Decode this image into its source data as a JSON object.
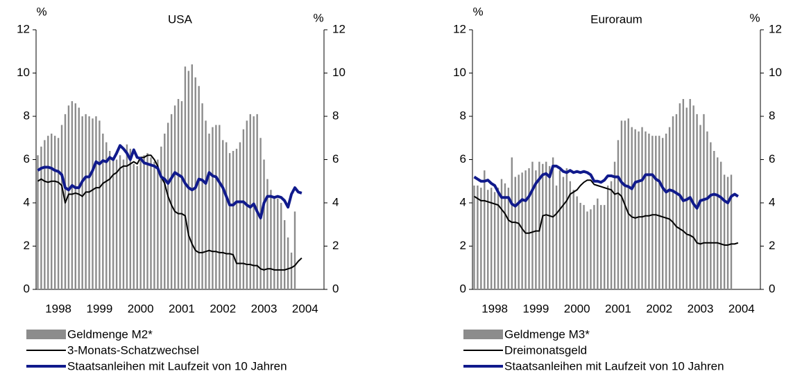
{
  "chart_data": [
    {
      "type": "bar_line",
      "title": "USA",
      "y_label": "%",
      "y2_label": "%",
      "categories": [
        null,
        null,
        null,
        null,
        null,
        null,
        "1998",
        null,
        null,
        null,
        null,
        null,
        null,
        null,
        null,
        null,
        null,
        null,
        "1999",
        null,
        null,
        null,
        null,
        null,
        null,
        null,
        null,
        null,
        null,
        null,
        "2000",
        null,
        null,
        null,
        null,
        null,
        null,
        null,
        null,
        null,
        null,
        null,
        "2001",
        null,
        null,
        null,
        null,
        null,
        null,
        null,
        null,
        null,
        null,
        null,
        "2002",
        null,
        null,
        null,
        null,
        null,
        null,
        null,
        null,
        null,
        null,
        null,
        "2003",
        null,
        null,
        null,
        null,
        null,
        null,
        null,
        null,
        null,
        null,
        null,
        "2004",
        null,
        null,
        null,
        null,
        null
      ],
      "ylim": [
        0,
        12
      ],
      "yticks": [
        0,
        2,
        4,
        6,
        8,
        10,
        12
      ],
      "y2lim": [
        0,
        12
      ],
      "y2ticks": [
        0,
        2,
        4,
        6,
        8,
        10,
        12
      ],
      "series": [
        {
          "name": "Geldmenge M2*",
          "kind": "bar",
          "color": "#8c8c8c",
          "values": [
            6.2,
            6.6,
            6.9,
            7.1,
            7.2,
            7.1,
            7.0,
            7.6,
            8.1,
            8.5,
            8.7,
            8.6,
            8.4,
            8.0,
            8.1,
            8.0,
            7.9,
            8.0,
            7.8,
            7.2,
            6.8,
            6.4,
            6.1,
            6.0,
            6.2,
            6.0,
            6.7,
            6.5,
            5.8,
            5.7,
            6.0,
            6.2,
            6.3,
            6.1,
            5.9,
            6.0,
            6.6,
            7.2,
            7.7,
            8.1,
            8.5,
            8.8,
            8.7,
            10.3,
            10.1,
            10.4,
            9.8,
            9.4,
            8.6,
            7.8,
            7.2,
            7.5,
            7.6,
            7.6,
            6.9,
            6.8,
            6.3,
            6.4,
            6.5,
            6.8,
            7.4,
            7.8,
            8.1,
            8.0,
            8.1,
            7.0,
            6.0,
            5.1,
            4.6,
            4.3,
            4.2,
            4.0,
            3.2,
            2.4,
            1.7,
            3.6,
            null,
            null,
            null,
            null,
            null,
            null,
            null,
            null
          ]
        },
        {
          "name": "3-Monats-Schatzwechsel",
          "kind": "line",
          "color": "#000000",
          "width": 2,
          "values": [
            5.0,
            5.1,
            5.0,
            4.95,
            5.0,
            5.0,
            4.95,
            4.8,
            4.0,
            4.4,
            4.4,
            4.45,
            4.4,
            4.3,
            4.5,
            4.5,
            4.6,
            4.7,
            4.7,
            4.9,
            5.0,
            5.1,
            5.3,
            5.4,
            5.6,
            5.7,
            5.7,
            5.8,
            5.9,
            5.8,
            6.1,
            6.1,
            6.2,
            6.2,
            6.0,
            5.7,
            5.2,
            4.9,
            4.3,
            3.9,
            3.6,
            3.5,
            3.5,
            3.4,
            2.5,
            2.1,
            1.8,
            1.7,
            1.7,
            1.75,
            1.8,
            1.75,
            1.75,
            1.7,
            1.7,
            1.65,
            1.65,
            1.6,
            1.2,
            1.2,
            1.2,
            1.15,
            1.15,
            1.1,
            1.1,
            0.95,
            0.9,
            0.95,
            0.95,
            0.9,
            0.9,
            0.9,
            0.9,
            0.95,
            1.0,
            1.1,
            1.3,
            1.45,
            null,
            null,
            null,
            null,
            null,
            null
          ]
        },
        {
          "name": "Staatsanleihen mit Laufzeit von 10 Jahren",
          "kind": "line",
          "color": "#101a8c",
          "width": 4,
          "values": [
            5.5,
            5.6,
            5.65,
            5.65,
            5.6,
            5.5,
            5.45,
            5.3,
            4.7,
            4.6,
            4.8,
            4.7,
            4.7,
            5.0,
            5.2,
            5.2,
            5.5,
            5.9,
            5.8,
            5.95,
            5.9,
            6.1,
            6.0,
            6.3,
            6.65,
            6.5,
            6.3,
            6.0,
            6.45,
            6.1,
            6.05,
            5.85,
            5.8,
            5.75,
            5.7,
            5.6,
            5.2,
            5.1,
            4.9,
            5.15,
            5.4,
            5.3,
            5.2,
            4.9,
            4.7,
            4.6,
            4.7,
            5.1,
            5.05,
            4.9,
            5.4,
            5.25,
            5.2,
            4.95,
            4.7,
            4.3,
            3.9,
            3.9,
            4.05,
            4.05,
            4.05,
            3.9,
            3.8,
            3.95,
            3.6,
            3.3,
            4.0,
            4.3,
            4.3,
            4.25,
            4.3,
            4.25,
            4.1,
            3.8,
            4.4,
            4.7,
            4.5,
            4.45,
            null,
            null,
            null,
            null,
            null,
            null
          ]
        }
      ]
    },
    {
      "type": "bar_line",
      "title": "Euroraum",
      "y_label": "%",
      "y2_label": "%",
      "categories": [
        null,
        null,
        null,
        null,
        null,
        null,
        "1998",
        null,
        null,
        null,
        null,
        null,
        null,
        null,
        null,
        null,
        null,
        null,
        "1999",
        null,
        null,
        null,
        null,
        null,
        null,
        null,
        null,
        null,
        null,
        null,
        "2000",
        null,
        null,
        null,
        null,
        null,
        null,
        null,
        null,
        null,
        null,
        null,
        "2001",
        null,
        null,
        null,
        null,
        null,
        null,
        null,
        null,
        null,
        null,
        null,
        "2002",
        null,
        null,
        null,
        null,
        null,
        null,
        null,
        null,
        null,
        null,
        null,
        "2003",
        null,
        null,
        null,
        null,
        null,
        null,
        null,
        null,
        null,
        null,
        null,
        "2004",
        null,
        null,
        null,
        null,
        null
      ],
      "ylim": [
        0,
        12
      ],
      "yticks": [
        0,
        2,
        4,
        6,
        8,
        10,
        12
      ],
      "y2lim": [
        0,
        12
      ],
      "y2ticks": [
        0,
        2,
        4,
        6,
        8,
        10,
        12
      ],
      "series": [
        {
          "name": "Geldmenge M3*",
          "kind": "bar",
          "color": "#8c8c8c",
          "values": [
            4.8,
            4.8,
            4.7,
            5.5,
            4.6,
            4.7,
            4.5,
            4.7,
            5.1,
            4.9,
            4.7,
            6.1,
            5.2,
            5.3,
            5.4,
            5.5,
            5.6,
            5.9,
            5.5,
            5.9,
            5.8,
            5.9,
            5.7,
            6.1,
            4.8,
            5.5,
            5.2,
            5.6,
            5.0,
            4.6,
            4.3,
            4.0,
            3.9,
            3.6,
            3.7,
            3.9,
            4.2,
            3.9,
            3.9,
            4.8,
            5.0,
            5.9,
            6.9,
            7.8,
            7.8,
            7.9,
            7.5,
            7.4,
            7.3,
            7.5,
            7.3,
            7.2,
            7.1,
            7.1,
            7.1,
            7.0,
            7.2,
            7.5,
            8.0,
            8.1,
            8.6,
            8.8,
            8.4,
            8.8,
            8.5,
            8.1,
            7.6,
            8.1,
            7.3,
            6.8,
            6.4,
            6.1,
            5.9,
            5.3,
            5.2,
            5.3,
            null,
            null,
            null,
            null,
            null,
            null,
            null,
            null
          ]
        },
        {
          "name": "Dreimonatsgeld",
          "kind": "line",
          "color": "#000000",
          "width": 2,
          "values": [
            4.3,
            4.2,
            4.1,
            4.1,
            4.05,
            4.0,
            3.95,
            3.9,
            3.7,
            3.5,
            3.2,
            3.1,
            3.1,
            3.05,
            2.8,
            2.6,
            2.6,
            2.65,
            2.7,
            2.7,
            3.4,
            3.45,
            3.4,
            3.35,
            3.5,
            3.7,
            3.9,
            4.1,
            4.4,
            4.5,
            4.6,
            4.8,
            4.95,
            5.05,
            5.05,
            4.85,
            4.8,
            4.75,
            4.7,
            4.65,
            4.6,
            4.4,
            4.45,
            4.3,
            3.9,
            3.5,
            3.35,
            3.3,
            3.35,
            3.35,
            3.4,
            3.4,
            3.45,
            3.45,
            3.4,
            3.35,
            3.3,
            3.25,
            3.1,
            2.9,
            2.8,
            2.7,
            2.55,
            2.5,
            2.4,
            2.15,
            2.1,
            2.15,
            2.15,
            2.15,
            2.15,
            2.15,
            2.1,
            2.05,
            2.05,
            2.1,
            2.1,
            2.15,
            null,
            null,
            null,
            null,
            null,
            null
          ]
        },
        {
          "name": "Staatsanleihen mit Laufzeit von 10 Jahren",
          "kind": "line",
          "color": "#101a8c",
          "width": 4,
          "values": [
            5.2,
            5.1,
            5.0,
            5.0,
            5.05,
            4.9,
            4.8,
            4.5,
            4.25,
            4.25,
            4.25,
            3.95,
            3.85,
            4.0,
            4.15,
            4.1,
            4.3,
            4.6,
            4.9,
            5.1,
            5.3,
            5.35,
            5.2,
            5.7,
            5.7,
            5.6,
            5.45,
            5.4,
            5.5,
            5.4,
            5.45,
            5.4,
            5.45,
            5.4,
            5.3,
            5.0,
            5.0,
            4.95,
            5.05,
            5.25,
            5.25,
            5.2,
            5.2,
            4.95,
            4.8,
            4.75,
            4.65,
            4.95,
            5.0,
            5.05,
            5.3,
            5.3,
            5.3,
            5.1,
            5.0,
            4.7,
            4.5,
            4.6,
            4.55,
            4.45,
            4.35,
            4.1,
            4.15,
            4.25,
            3.95,
            3.75,
            4.1,
            4.15,
            4.2,
            4.35,
            4.4,
            4.35,
            4.25,
            4.1,
            4.0,
            4.3,
            4.4,
            4.3,
            null,
            null,
            null,
            null,
            null,
            null
          ]
        }
      ]
    }
  ]
}
